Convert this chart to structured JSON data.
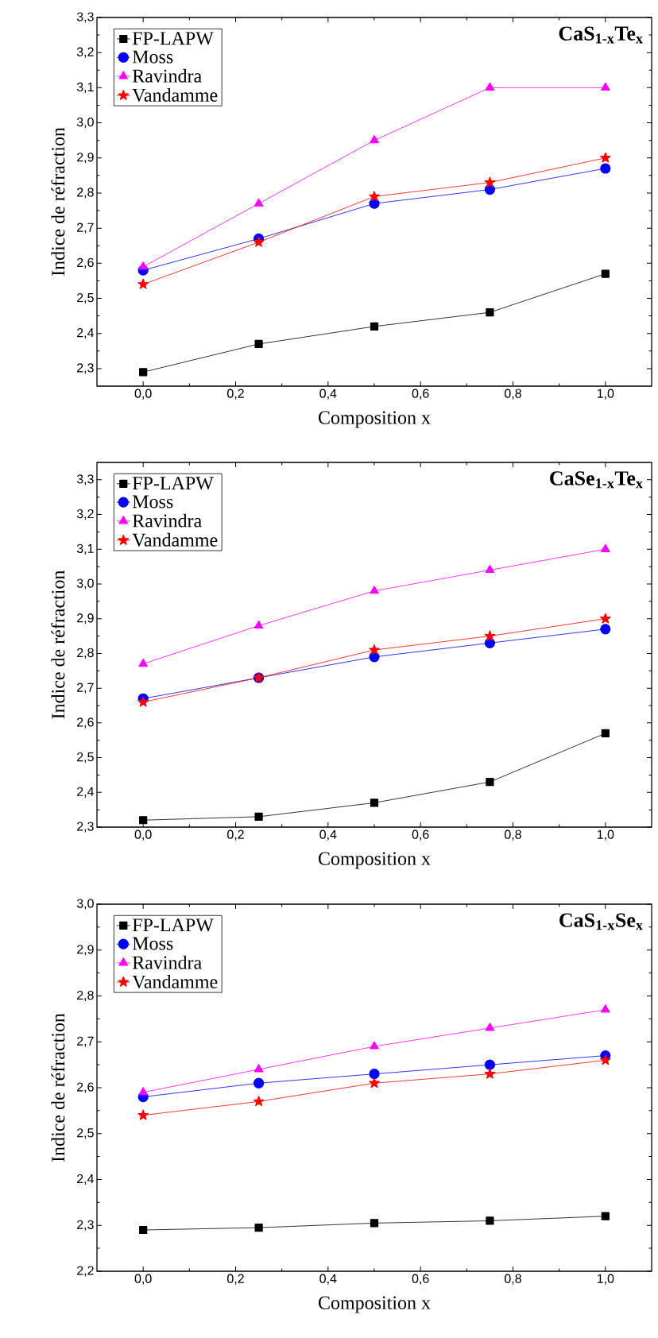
{
  "chart_data": [
    {
      "type": "line",
      "title": "CaS$_{1-x}$Te$_{x}$",
      "xlabel": "Composition x",
      "ylabel": "Indice de réfraction",
      "x": [
        0,
        0.25,
        0.5,
        0.75,
        1.0
      ],
      "xlim": [
        -0.1,
        1.1
      ],
      "ylim": [
        2.25,
        3.3
      ],
      "xticks": [
        {
          "value": 0,
          "label": "0,0"
        },
        {
          "value": 0.2,
          "label": "0,2"
        },
        {
          "value": 0.4,
          "label": "0,4"
        },
        {
          "value": 0.6,
          "label": "0,6"
        },
        {
          "value": 0.8,
          "label": "0,8"
        },
        {
          "value": 1.0,
          "label": "1,0"
        }
      ],
      "yticks": [
        {
          "value": 2.3,
          "label": "2,3"
        },
        {
          "value": 2.4,
          "label": "2,4"
        },
        {
          "value": 2.5,
          "label": "2,5"
        },
        {
          "value": 2.6,
          "label": "2,6"
        },
        {
          "value": 2.7,
          "label": "2,7"
        },
        {
          "value": 2.8,
          "label": "2,8"
        },
        {
          "value": 2.9,
          "label": "2,9"
        },
        {
          "value": 3.0,
          "label": "3,0"
        },
        {
          "value": 3.1,
          "label": "3,1"
        },
        {
          "value": 3.2,
          "label": "3,2"
        },
        {
          "value": 3.3,
          "label": "3,3"
        }
      ],
      "legend": "top left",
      "series": [
        {
          "name": "FP-LAPW",
          "color": "#000000",
          "marker": "square",
          "values": [
            2.29,
            2.37,
            2.42,
            2.46,
            2.57
          ]
        },
        {
          "name": "Moss",
          "color": "#0000ff",
          "marker": "circle",
          "values": [
            2.58,
            2.67,
            2.77,
            2.81,
            2.87
          ]
        },
        {
          "name": "Ravindra",
          "color": "#ff00ff",
          "marker": "triangle",
          "values": [
            2.59,
            2.77,
            2.95,
            3.1,
            3.1
          ]
        },
        {
          "name": "Vandamme",
          "color": "#ff0000",
          "marker": "star",
          "values": [
            2.54,
            2.66,
            2.79,
            2.83,
            2.9
          ]
        }
      ]
    },
    {
      "type": "line",
      "title": "CaSe$_{1-x}$Te$_{x}$",
      "xlabel": "Composition x",
      "ylabel": "Indice de réfraction",
      "x": [
        0,
        0.25,
        0.5,
        0.75,
        1.0
      ],
      "xlim": [
        -0.1,
        1.1
      ],
      "ylim": [
        2.3,
        3.35
      ],
      "xticks": [
        {
          "value": 0,
          "label": "0,0"
        },
        {
          "value": 0.2,
          "label": "0,2"
        },
        {
          "value": 0.4,
          "label": "0,4"
        },
        {
          "value": 0.6,
          "label": "0,6"
        },
        {
          "value": 0.8,
          "label": "0,8"
        },
        {
          "value": 1.0,
          "label": "1,0"
        }
      ],
      "yticks": [
        {
          "value": 2.3,
          "label": "2,3"
        },
        {
          "value": 2.4,
          "label": "2,4"
        },
        {
          "value": 2.5,
          "label": "2,5"
        },
        {
          "value": 2.6,
          "label": "2,6"
        },
        {
          "value": 2.7,
          "label": "2,7"
        },
        {
          "value": 2.8,
          "label": "2,8"
        },
        {
          "value": 2.9,
          "label": "2,9"
        },
        {
          "value": 3.0,
          "label": "3,0"
        },
        {
          "value": 3.1,
          "label": "3,1"
        },
        {
          "value": 3.2,
          "label": "3,2"
        },
        {
          "value": 3.3,
          "label": "3,3"
        }
      ],
      "legend": "top left",
      "series": [
        {
          "name": "FP-LAPW",
          "color": "#000000",
          "marker": "square",
          "values": [
            2.32,
            2.33,
            2.37,
            2.43,
            2.57
          ]
        },
        {
          "name": "Moss",
          "color": "#0000ff",
          "marker": "circle",
          "values": [
            2.67,
            2.73,
            2.79,
            2.83,
            2.87
          ]
        },
        {
          "name": "Ravindra",
          "color": "#ff00ff",
          "marker": "triangle",
          "values": [
            2.77,
            2.88,
            2.98,
            3.04,
            3.1
          ]
        },
        {
          "name": "Vandamme",
          "color": "#ff0000",
          "marker": "star",
          "values": [
            2.66,
            2.73,
            2.81,
            2.85,
            2.9
          ]
        }
      ]
    },
    {
      "type": "line",
      "title": "CaS$_{1-x}$Se$_{x}$",
      "xlabel": "Composition x",
      "ylabel": "Indice de réfraction",
      "x": [
        0,
        0.25,
        0.5,
        0.75,
        1.0
      ],
      "xlim": [
        -0.1,
        1.1
      ],
      "ylim": [
        2.2,
        3.0
      ],
      "xticks": [
        {
          "value": 0,
          "label": "0,0"
        },
        {
          "value": 0.2,
          "label": "0,2"
        },
        {
          "value": 0.4,
          "label": "0,4"
        },
        {
          "value": 0.6,
          "label": "0,6"
        },
        {
          "value": 0.8,
          "label": "0,8"
        },
        {
          "value": 1.0,
          "label": "1,0"
        }
      ],
      "yticks": [
        {
          "value": 2.2,
          "label": "2,2"
        },
        {
          "value": 2.3,
          "label": "2,3"
        },
        {
          "value": 2.4,
          "label": "2,4"
        },
        {
          "value": 2.5,
          "label": "2,5"
        },
        {
          "value": 2.6,
          "label": "2,6"
        },
        {
          "value": 2.7,
          "label": "2,7"
        },
        {
          "value": 2.8,
          "label": "2,8"
        },
        {
          "value": 2.9,
          "label": "2,9"
        },
        {
          "value": 3.0,
          "label": "3,0"
        }
      ],
      "legend": "top left",
      "series": [
        {
          "name": "FP-LAPW",
          "color": "#000000",
          "marker": "square",
          "values": [
            2.29,
            2.295,
            2.305,
            2.31,
            2.32
          ]
        },
        {
          "name": "Moss",
          "color": "#0000ff",
          "marker": "circle",
          "values": [
            2.58,
            2.61,
            2.63,
            2.65,
            2.67
          ]
        },
        {
          "name": "Ravindra",
          "color": "#ff00ff",
          "marker": "triangle",
          "values": [
            2.59,
            2.64,
            2.69,
            2.73,
            2.77
          ]
        },
        {
          "name": "Vandamme",
          "color": "#ff0000",
          "marker": "star",
          "values": [
            2.54,
            2.57,
            2.61,
            2.63,
            2.66
          ]
        }
      ]
    }
  ]
}
